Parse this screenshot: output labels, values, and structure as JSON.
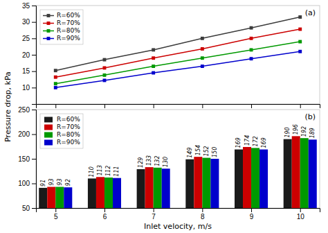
{
  "chart_data": [
    {
      "type": "line",
      "annotation": "(a)",
      "ylabel": "Pressure drop, kPa",
      "x": [
        5,
        6,
        7,
        8,
        9,
        10
      ],
      "xlim": [
        4.6,
        10.4
      ],
      "xticks": [
        5,
        6,
        7,
        8,
        9,
        10
      ],
      "ylim": [
        5,
        35
      ],
      "yticks": [
        10,
        15,
        20,
        25,
        30,
        35
      ],
      "tick_labels": "y",
      "grid": false,
      "legend": "upper left",
      "series": [
        {
          "name": "R=60%",
          "color": "#3c3c3c",
          "marker": "square",
          "values": [
            15.2,
            18.5,
            21.5,
            25.0,
            28.2,
            31.5
          ]
        },
        {
          "name": "R=70%",
          "color": "#cc0000",
          "marker": "square",
          "values": [
            13.2,
            16.0,
            19.0,
            21.8,
            25.0,
            27.8
          ]
        },
        {
          "name": "R=80%",
          "color": "#009900",
          "marker": "square",
          "values": [
            11.2,
            13.8,
            16.5,
            19.0,
            21.5,
            24.0
          ]
        },
        {
          "name": "R=90%",
          "color": "#0000cc",
          "marker": "square",
          "values": [
            10.0,
            12.2,
            14.5,
            16.5,
            18.8,
            21.0
          ]
        }
      ]
    },
    {
      "type": "bar",
      "annotation": "(b)",
      "xlabel": "Inlet velocity, m/s",
      "x": [
        5,
        6,
        7,
        8,
        9,
        10
      ],
      "xlim": [
        4.6,
        10.4
      ],
      "xticks": [
        5,
        6,
        7,
        8,
        9,
        10
      ],
      "ylim": [
        50,
        250
      ],
      "yticks": [
        50,
        100,
        150,
        200,
        250
      ],
      "grid": false,
      "legend": "upper left",
      "data_labels": true,
      "series": [
        {
          "name": "R=60%",
          "color": "#1a1a1a",
          "values": [
            91,
            110,
            129,
            149,
            169,
            190
          ]
        },
        {
          "name": "R=70%",
          "color": "#cc0000",
          "values": [
            93,
            113,
            133,
            154,
            174,
            196
          ]
        },
        {
          "name": "R=80%",
          "color": "#009900",
          "values": [
            93,
            112,
            132,
            152,
            172,
            192
          ]
        },
        {
          "name": "R=90%",
          "color": "#0000cc",
          "values": [
            92,
            111,
            130,
            150,
            169,
            189
          ]
        }
      ]
    }
  ]
}
